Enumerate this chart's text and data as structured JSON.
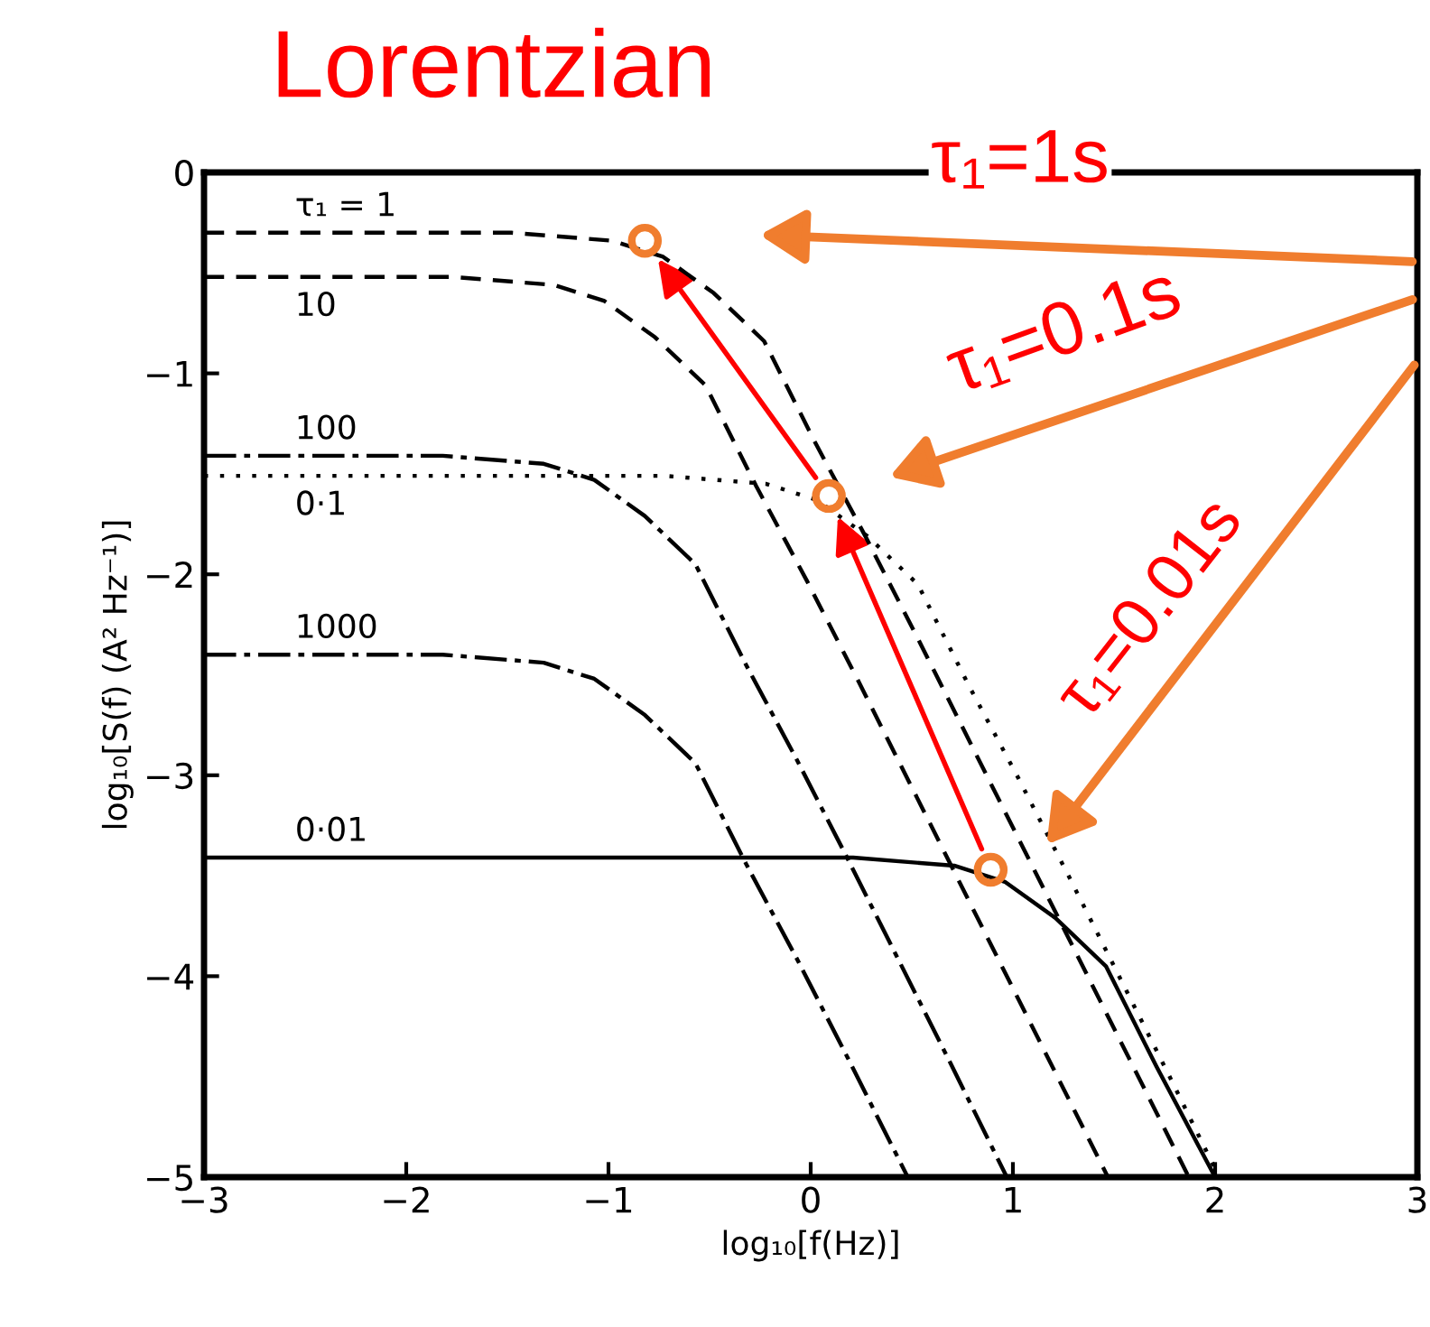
{
  "chart_data": {
    "type": "line",
    "title": "Lorentzian",
    "xlabel": "log₁₀[f(Hz)]",
    "ylabel": "log₁₀[S(f) (A² Hz⁻¹)]",
    "xlim": [
      -3,
      3
    ],
    "ylim": [
      -5,
      0
    ],
    "xticks": [
      -3,
      -2,
      -1,
      0,
      1,
      2,
      3
    ],
    "yticks": [
      -5,
      -4,
      -3,
      -2,
      -1,
      0
    ],
    "grid": false,
    "annotations": [
      "τ₁=1s",
      "τ₁=0.1s",
      "τ₁=0.01s"
    ],
    "series": [
      {
        "name": "τ₁ = 1",
        "color": "#000000",
        "line_style": "dashed",
        "x": [
          -3,
          -1.48,
          -0.98,
          -0.73,
          -0.48,
          -0.23,
          0.02,
          0.27,
          0.52,
          1.02,
          1.52,
          1.87
        ],
        "values": [
          -0.3,
          -0.3,
          -0.34,
          -0.42,
          -0.6,
          -0.84,
          -1.34,
          -1.81,
          -2.3,
          -3.3,
          -4.3,
          -5.0
        ]
      },
      {
        "name": "10",
        "color": "#000000",
        "line_style": "dashed",
        "x": [
          -3,
          -1.77,
          -1.27,
          -1.02,
          -0.77,
          -0.52,
          -0.27,
          -0.02,
          0.23,
          0.73,
          1.23,
          1.47
        ],
        "values": [
          -0.52,
          -0.52,
          -0.56,
          -0.64,
          -0.82,
          -1.06,
          -1.56,
          -2.03,
          -2.52,
          -3.52,
          -4.52,
          -5.0
        ]
      },
      {
        "name": "100",
        "color": "#000000",
        "line_style": "dashdot",
        "x": [
          -3,
          -1.82,
          -1.32,
          -1.07,
          -0.82,
          -0.57,
          -0.32,
          -0.07,
          0.18,
          0.68,
          0.97
        ],
        "values": [
          -1.41,
          -1.41,
          -1.45,
          -1.53,
          -1.71,
          -1.95,
          -2.45,
          -2.92,
          -3.41,
          -4.41,
          -5.0
        ]
      },
      {
        "name": "0·1",
        "color": "#000000",
        "line_style": "dotted",
        "x": [
          -3,
          -0.72,
          -0.22,
          0.03,
          0.28,
          0.53,
          0.78,
          1.03,
          1.28,
          1.78,
          2.02
        ],
        "values": [
          -1.51,
          -1.51,
          -1.55,
          -1.63,
          -1.81,
          -2.05,
          -2.55,
          -3.02,
          -3.51,
          -4.51,
          -5.0
        ]
      },
      {
        "name": "1000",
        "color": "#000000",
        "line_style": "dashdot",
        "x": [
          -3,
          -1.82,
          -1.32,
          -1.07,
          -0.82,
          -0.57,
          -0.32,
          -0.07,
          0.18,
          0.48
        ],
        "values": [
          -2.4,
          -2.4,
          -2.44,
          -2.52,
          -2.7,
          -2.94,
          -3.44,
          -3.91,
          -4.4,
          -5.0
        ]
      },
      {
        "name": "0·01",
        "color": "#000000",
        "line_style": "solid",
        "x": [
          -3,
          0.21,
          0.71,
          0.96,
          1.21,
          1.46,
          1.71,
          2.0
        ],
        "values": [
          -3.41,
          -3.41,
          -3.45,
          -3.53,
          -3.71,
          -3.95,
          -4.45,
          -5.0
        ]
      },
      {
        "type": "scatter",
        "marker": "circle",
        "color": "#f07d2e",
        "x": [
          -0.82,
          0.09,
          0.89
        ],
        "values": [
          -0.34,
          -1.61,
          -3.47
        ]
      }
    ]
  }
}
